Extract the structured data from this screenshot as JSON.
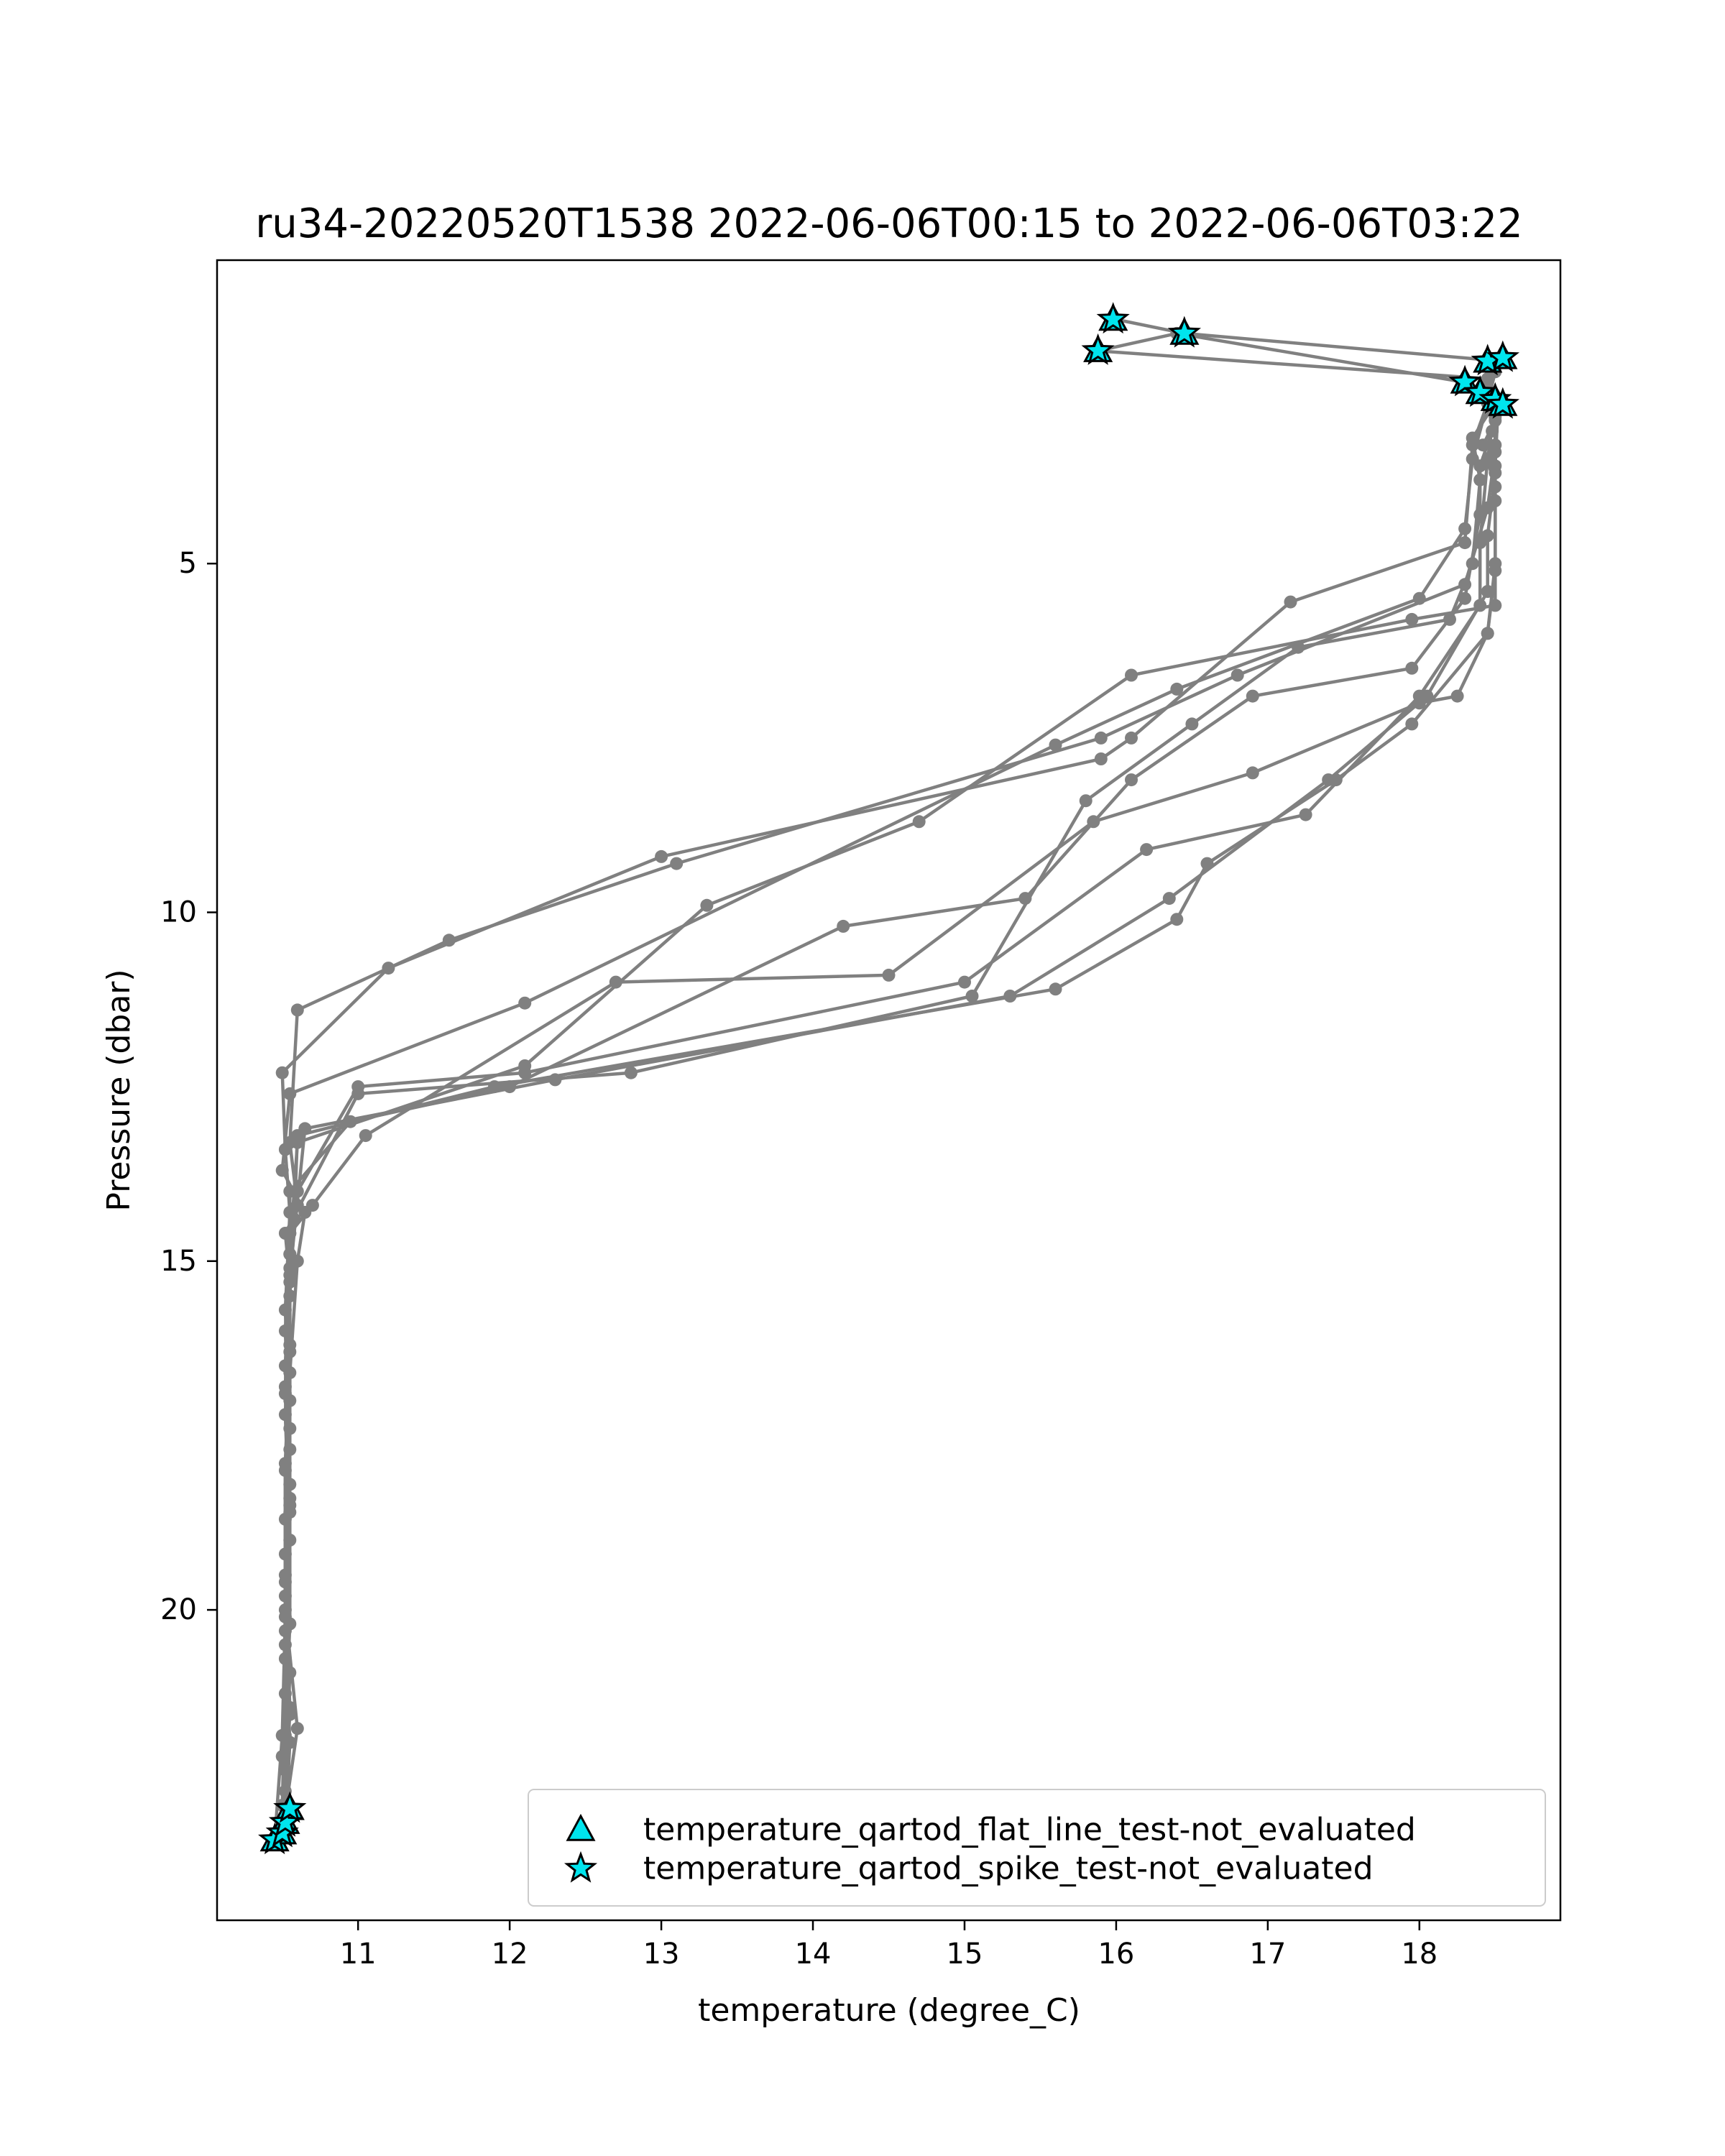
{
  "chart_data": {
    "type": "line",
    "title": "ru34-20220520T1538 2022-06-06T00:15 to 2022-06-06T03:22",
    "xlabel": "temperature (degree_C)",
    "ylabel": "Pressure (dbar)",
    "xlim": [
      10.07,
      18.93
    ],
    "ylim": [
      24.45,
      0.65
    ],
    "y_inverted": true,
    "x_ticks": [
      11,
      12,
      13,
      14,
      15,
      16,
      17,
      18
    ],
    "y_ticks": [
      5,
      10,
      15,
      20
    ],
    "grid": false,
    "legend_position": "lower-right",
    "profile_color": "#808080",
    "flag_color": "#00e5ee",
    "flag_edge_color": "#000000",
    "series": [
      {
        "values": [
          [
            10.52,
            23.2
          ],
          [
            10.52,
            22.6
          ],
          [
            10.55,
            20.9
          ],
          [
            10.52,
            19.2
          ],
          [
            10.55,
            17.4
          ],
          [
            10.52,
            15.7
          ],
          [
            10.55,
            14.3
          ],
          [
            10.52,
            13.4
          ],
          [
            10.5,
            12.3
          ],
          [
            11.2,
            10.8
          ],
          [
            13.0,
            9.2
          ],
          [
            15.9,
            7.8
          ],
          [
            16.1,
            7.5
          ],
          [
            17.15,
            5.55
          ],
          [
            18.3,
            4.7
          ],
          [
            18.35,
            3.3
          ],
          [
            18.45,
            2.7
          ],
          [
            18.5,
            2.25
          ],
          [
            18.55,
            2.1
          ],
          [
            16.45,
            1.7
          ],
          [
            16.0,
            1.5
          ]
        ]
      },
      {
        "values": [
          [
            10.45,
            23.3
          ],
          [
            10.5,
            21.8
          ],
          [
            10.52,
            20.1
          ],
          [
            10.55,
            18.4
          ],
          [
            10.55,
            16.6
          ],
          [
            10.6,
            15.0
          ],
          [
            10.65,
            14.3
          ],
          [
            10.5,
            13.7
          ],
          [
            10.55,
            12.6
          ],
          [
            12.1,
            11.3
          ],
          [
            15.6,
            7.6
          ],
          [
            16.4,
            6.8
          ],
          [
            18.0,
            5.5
          ],
          [
            18.3,
            4.5
          ],
          [
            18.35,
            3.5
          ],
          [
            18.45,
            2.7
          ],
          [
            18.3,
            2.4
          ],
          [
            16.4,
            1.7
          ],
          [
            15.88,
            1.95
          ],
          [
            18.45,
            2.35
          ]
        ]
      },
      {
        "values": [
          [
            10.5,
            23.1
          ],
          [
            10.55,
            21.5
          ],
          [
            10.52,
            19.8
          ],
          [
            10.52,
            18.0
          ],
          [
            10.55,
            16.2
          ],
          [
            10.55,
            14.9
          ],
          [
            10.6,
            14.2
          ],
          [
            10.55,
            13.3
          ],
          [
            10.6,
            11.4
          ],
          [
            11.6,
            10.4
          ],
          [
            13.1,
            9.3
          ],
          [
            15.9,
            7.5
          ],
          [
            16.8,
            6.6
          ],
          [
            18.3,
            5.3
          ],
          [
            18.45,
            4.2
          ],
          [
            18.5,
            3.4
          ],
          [
            18.5,
            2.65
          ]
        ]
      },
      {
        "values": [
          [
            10.52,
            23.0
          ],
          [
            10.5,
            22.1
          ],
          [
            10.52,
            20.5
          ],
          [
            10.52,
            18.7
          ],
          [
            10.55,
            17.0
          ],
          [
            10.55,
            15.3
          ],
          [
            10.52,
            14.6
          ],
          [
            11.0,
            12.6
          ],
          [
            12.8,
            12.3
          ],
          [
            15.05,
            11.2
          ],
          [
            15.8,
            8.4
          ],
          [
            16.5,
            7.3
          ],
          [
            17.2,
            6.2
          ],
          [
            18.2,
            5.8
          ],
          [
            18.35,
            5.0
          ],
          [
            18.4,
            3.8
          ],
          [
            18.35,
            3.2
          ],
          [
            18.5,
            2.7
          ]
        ]
      },
      {
        "values": [
          [
            10.5,
            23.2
          ],
          [
            10.6,
            21.7
          ],
          [
            10.52,
            20.0
          ],
          [
            10.55,
            18.2
          ],
          [
            10.52,
            16.5
          ],
          [
            10.55,
            14.9
          ],
          [
            10.6,
            13.3
          ],
          [
            12.1,
            12.2
          ],
          [
            13.3,
            9.9
          ],
          [
            14.7,
            8.7
          ],
          [
            16.1,
            6.6
          ],
          [
            17.95,
            5.8
          ],
          [
            18.5,
            5.6
          ],
          [
            18.5,
            3.9
          ],
          [
            18.42,
            3.3
          ],
          [
            18.5,
            2.95
          ],
          [
            18.45,
            2.5
          ]
        ]
      },
      {
        "values": [
          [
            10.5,
            22.8
          ],
          [
            10.52,
            21.2
          ],
          [
            10.52,
            19.5
          ],
          [
            10.55,
            17.7
          ],
          [
            10.52,
            16.0
          ],
          [
            10.55,
            14.6
          ],
          [
            10.55,
            14.0
          ],
          [
            10.95,
            13.0
          ],
          [
            12.0,
            12.5
          ],
          [
            14.2,
            10.2
          ],
          [
            15.4,
            9.8
          ],
          [
            16.1,
            8.1
          ],
          [
            16.9,
            6.9
          ],
          [
            17.95,
            6.5
          ],
          [
            18.3,
            5.5
          ],
          [
            18.4,
            4.3
          ],
          [
            18.4,
            3.6
          ],
          [
            18.48,
            3.1
          ]
        ]
      },
      {
        "values": [
          [
            10.5,
            23.05
          ],
          [
            10.55,
            21.4
          ],
          [
            10.52,
            19.6
          ],
          [
            10.52,
            17.9
          ],
          [
            10.55,
            16.3
          ],
          [
            10.55,
            14.6
          ],
          [
            10.7,
            14.2
          ],
          [
            11.05,
            13.2
          ],
          [
            12.7,
            11.0
          ],
          [
            14.5,
            10.9
          ],
          [
            15.85,
            8.7
          ],
          [
            16.9,
            8.0
          ],
          [
            18.0,
            7.0
          ],
          [
            18.25,
            6.9
          ],
          [
            18.45,
            6.0
          ],
          [
            18.5,
            5.1
          ],
          [
            18.5,
            4.1
          ],
          [
            18.5,
            3.3
          ]
        ]
      },
      {
        "values": [
          [
            10.52,
            23.2
          ],
          [
            10.55,
            21.9
          ],
          [
            10.52,
            20.3
          ],
          [
            10.55,
            18.6
          ],
          [
            10.52,
            16.9
          ],
          [
            10.55,
            15.2
          ],
          [
            10.65,
            13.1
          ],
          [
            12.3,
            12.4
          ],
          [
            15.3,
            11.2
          ],
          [
            16.35,
            9.8
          ],
          [
            17.4,
            8.1
          ],
          [
            18.05,
            6.9
          ],
          [
            18.45,
            5.4
          ],
          [
            18.45,
            4.6
          ],
          [
            18.5,
            3.7
          ],
          [
            18.5,
            2.9
          ],
          [
            18.52,
            2.65
          ]
        ]
      },
      {
        "values": [
          [
            10.5,
            23.15
          ],
          [
            10.52,
            22.3
          ],
          [
            10.52,
            20.7
          ],
          [
            10.55,
            19.0
          ],
          [
            10.52,
            17.2
          ],
          [
            10.55,
            15.5
          ],
          [
            10.58,
            14.4
          ],
          [
            10.6,
            13.2
          ],
          [
            11.9,
            12.5
          ],
          [
            15.6,
            11.1
          ],
          [
            16.4,
            10.1
          ],
          [
            16.6,
            9.3
          ],
          [
            17.45,
            8.1
          ],
          [
            17.95,
            7.3
          ],
          [
            18.45,
            6.0
          ],
          [
            18.5,
            5.0
          ],
          [
            18.5,
            3.6
          ],
          [
            18.52,
            2.7
          ]
        ]
      },
      {
        "values": [
          [
            10.52,
            23.2
          ],
          [
            10.52,
            21.8
          ],
          [
            10.55,
            20.2
          ],
          [
            10.55,
            18.5
          ],
          [
            10.52,
            16.8
          ],
          [
            10.55,
            15.1
          ],
          [
            10.6,
            14.0
          ],
          [
            11.0,
            12.5
          ],
          [
            12.1,
            12.3
          ],
          [
            15.0,
            11.0
          ],
          [
            16.2,
            9.1
          ],
          [
            17.25,
            8.6
          ],
          [
            18.0,
            6.9
          ],
          [
            18.4,
            5.6
          ],
          [
            18.4,
            4.7
          ],
          [
            18.45,
            3.5
          ],
          [
            18.5,
            2.75
          ]
        ]
      }
    ],
    "flagged_points": [
      {
        "name": "temperature_qartod_flat_line_test-not_evaluated",
        "marker": "triangle",
        "values": [
          [
            15.98,
            1.5
          ],
          [
            16.45,
            1.7
          ],
          [
            15.88,
            1.95
          ],
          [
            18.45,
            2.1
          ],
          [
            18.55,
            2.05
          ],
          [
            18.3,
            2.4
          ],
          [
            18.4,
            2.55
          ],
          [
            18.5,
            2.65
          ],
          [
            18.55,
            2.72
          ],
          [
            10.45,
            23.3
          ],
          [
            10.5,
            23.2
          ],
          [
            10.52,
            23.05
          ],
          [
            10.55,
            22.85
          ]
        ]
      },
      {
        "name": "temperature_qartod_spike_test-not_evaluated",
        "marker": "star",
        "values": [
          [
            15.98,
            1.5
          ],
          [
            16.45,
            1.7
          ],
          [
            15.88,
            1.95
          ],
          [
            18.45,
            2.1
          ],
          [
            18.55,
            2.05
          ],
          [
            18.3,
            2.4
          ],
          [
            18.4,
            2.55
          ],
          [
            18.5,
            2.65
          ],
          [
            18.55,
            2.72
          ],
          [
            10.45,
            23.3
          ],
          [
            10.5,
            23.2
          ],
          [
            10.52,
            23.05
          ],
          [
            10.55,
            22.85
          ]
        ]
      }
    ]
  }
}
